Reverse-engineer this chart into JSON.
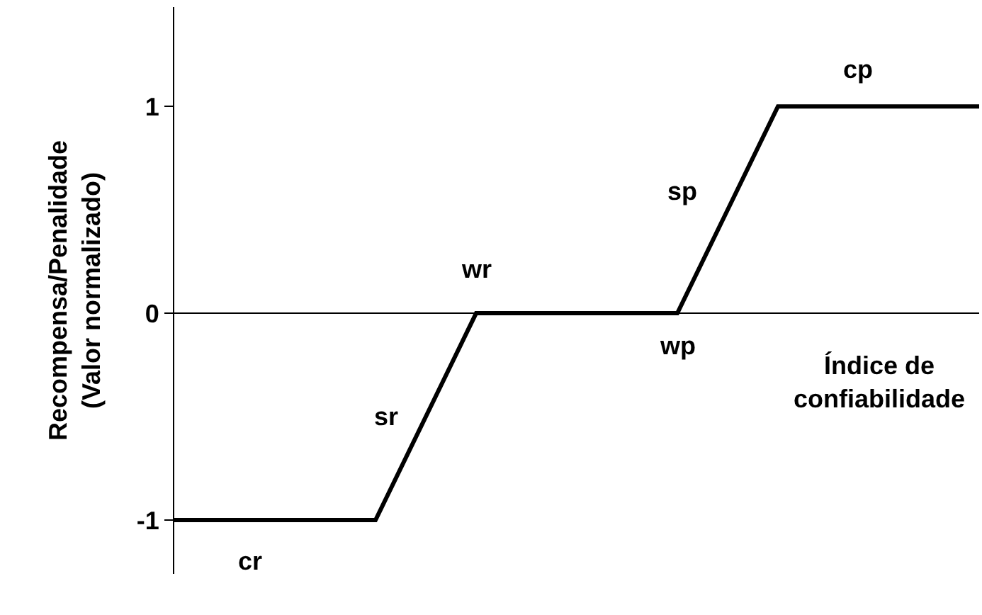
{
  "chart_data": {
    "type": "line",
    "ylabel": "Recompensa/Penalidade\n(Valor normalizado)",
    "xlabel": "Índice de\nconfiabilidade",
    "categories": [
      null,
      null,
      null,
      null,
      null,
      null,
      null,
      null,
      null
    ],
    "series": [
      {
        "color": "#000000",
        "values": [
          -1,
          -1,
          -1,
          0,
          0,
          0,
          1,
          1,
          1
        ]
      }
    ],
    "ylim": [
      -1.26,
      1.48
    ],
    "yticks": [
      -1,
      0,
      1
    ],
    "ref_lines": [
      {
        "axis": "y",
        "value": 0,
        "color": "#000000"
      }
    ],
    "marker": "none",
    "line_style": "solid",
    "annotations": [
      "cr",
      "sr",
      "wr",
      "wp",
      "sp",
      "cp"
    ]
  }
}
